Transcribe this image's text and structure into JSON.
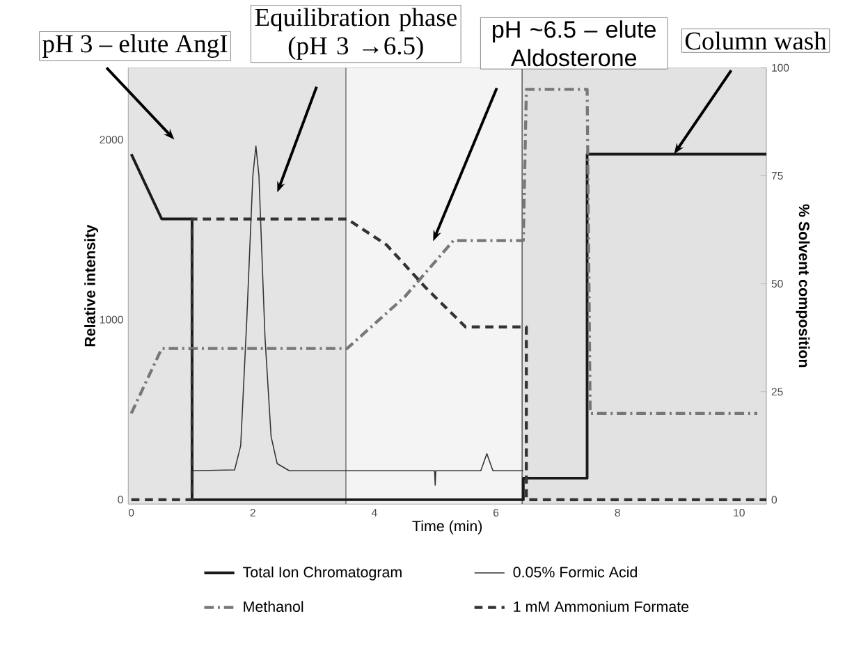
{
  "chart_data": {
    "type": "line",
    "xlabel": "Time (min)",
    "ylabel": "Relative intensity",
    "y2label": "% Solvent composition",
    "xlim": [
      -0.05,
      10.45
    ],
    "xticks": [
      0,
      2,
      4,
      6,
      8,
      10
    ],
    "ylim": [
      -25,
      2400
    ],
    "yticks": [
      0,
      1000,
      2000
    ],
    "y2lim": [
      -1,
      100
    ],
    "y2ticks": [
      0,
      25,
      50,
      75,
      100
    ],
    "legend": "bottom",
    "series": [
      {
        "name": "Total Ion Chromatogram",
        "color": "#1a1a1a",
        "axis": "y2",
        "line_style": "solid",
        "x": [
          0,
          0.5,
          1.0,
          1.0,
          6.45,
          6.45,
          7.5,
          7.5,
          10.45
        ],
        "values": [
          80,
          65,
          65,
          0,
          0,
          5,
          5,
          80,
          80
        ]
      },
      {
        "name": "0.05% Formic Acid",
        "color": "#333333",
        "axis": "y",
        "line_style": "solid",
        "x": [
          1.0,
          1.7,
          1.8,
          1.9,
          2.0,
          2.05,
          2.1,
          2.2,
          2.3,
          2.4,
          2.6,
          4.99,
          5.0,
          5.01,
          5.75,
          5.85,
          5.95,
          6.45
        ],
        "values": [
          160,
          165,
          300,
          1000,
          1800,
          1965,
          1800,
          900,
          350,
          200,
          160,
          160,
          80,
          160,
          160,
          255,
          160,
          160
        ]
      },
      {
        "name": "Methanol",
        "color": "#777777",
        "axis": "y2",
        "line_style": "dashdot",
        "x": [
          0,
          0.5,
          3.55,
          4.5,
          5.3,
          6.45,
          6.5,
          7.5,
          7.55,
          10.3
        ],
        "values": [
          20,
          35,
          35,
          47,
          60,
          60,
          95,
          95,
          20,
          20
        ]
      },
      {
        "name": "1 mM Ammonium Formate",
        "color": "#333333",
        "axis": "y2",
        "line_style": "dashed",
        "x": [
          0,
          1.0,
          1.0,
          3.55,
          4.2,
          4.85,
          5.5,
          6.45,
          6.5,
          6.5,
          10.45
        ],
        "values": [
          0,
          0,
          65,
          65,
          59,
          49,
          40,
          40,
          40,
          0,
          0
        ]
      }
    ],
    "ref_lines": [
      {
        "axis": "x",
        "value": 3.53,
        "color": "#333333"
      },
      {
        "axis": "x",
        "value": 6.43,
        "color": "#333333"
      }
    ],
    "bands": [
      {
        "axis": "x",
        "from": -0.05,
        "to": 3.53,
        "color": "#e4e4e4"
      },
      {
        "axis": "x",
        "from": 3.53,
        "to": 6.43,
        "color": "#f4f4f4"
      },
      {
        "axis": "x",
        "from": 6.43,
        "to": 10.45,
        "color": "#e2e2e2"
      }
    ],
    "annotations": [
      "pH 3 – elute AngI",
      "Equilibration phase (pH 3 →6.5)",
      "pH ~6.5 – elute Aldosterone",
      {
        "text": "Column wash",
        "x": 8.93,
        "y": 1920
      }
    ]
  }
}
